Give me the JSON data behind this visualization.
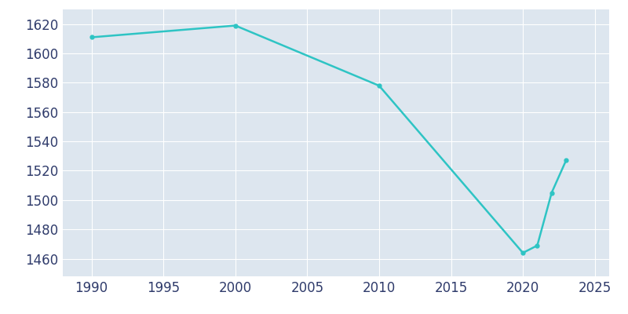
{
  "years_full": [
    1990,
    2000,
    2010,
    2020,
    2021,
    2022,
    2023
  ],
  "population": [
    1611,
    1619,
    1578,
    1464,
    1469,
    1505,
    1527
  ],
  "line_color": "#2EC4C4",
  "bg_color": "#DDE6EF",
  "fig_color": "#FFFFFF",
  "grid_color": "#FFFFFF",
  "text_color": "#2F3B6B",
  "xlim": [
    1988,
    2026
  ],
  "ylim": [
    1448,
    1630
  ],
  "xticks": [
    1990,
    1995,
    2000,
    2005,
    2010,
    2015,
    2020,
    2025
  ],
  "yticks": [
    1460,
    1480,
    1500,
    1520,
    1540,
    1560,
    1580,
    1600,
    1620
  ],
  "tick_fontsize": 12
}
